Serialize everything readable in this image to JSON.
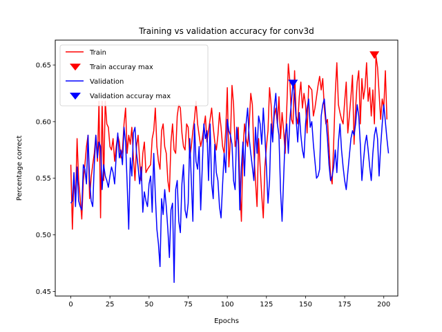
{
  "chart_data": {
    "type": "line",
    "title": "Training vs validation accuracy for conv3d",
    "xlabel": "Epochs",
    "ylabel": "Percentage correct",
    "xlim": [
      -9.95,
      208.95
    ],
    "ylim": [
      0.446,
      0.672
    ],
    "x_ticks": [
      0,
      25,
      50,
      75,
      100,
      125,
      150,
      175,
      200
    ],
    "y_ticks": [
      0.45,
      0.5,
      0.55,
      0.6,
      0.65
    ],
    "x_tick_labels": [
      "0",
      "25",
      "50",
      "75",
      "100",
      "125",
      "150",
      "175",
      "200"
    ],
    "y_tick_labels": [
      "0.45",
      "0.50",
      "0.55",
      "0.60",
      "0.65"
    ],
    "grid": false,
    "legend_position": "top-left",
    "series": [
      {
        "name": "Train",
        "color": "#ff0000",
        "values": [
          0.562,
          0.505,
          0.551,
          0.53,
          0.585,
          0.548,
          0.532,
          0.514,
          0.548,
          0.562,
          0.578,
          0.588,
          0.532,
          0.551,
          0.562,
          0.572,
          0.588,
          0.565,
          0.618,
          0.515,
          0.618,
          0.548,
          0.618,
          0.598,
          0.595,
          0.578,
          0.575,
          0.585,
          0.565,
          0.578,
          0.588,
          0.582,
          0.568,
          0.575,
          0.598,
          0.612,
          0.572,
          0.588,
          0.58,
          0.595,
          0.568,
          0.548,
          0.578,
          0.588,
          0.565,
          0.548,
          0.572,
          0.582,
          0.555,
          0.558,
          0.56,
          0.562,
          0.585,
          0.592,
          0.612,
          0.578,
          0.565,
          0.558,
          0.592,
          0.598,
          0.578,
          0.572,
          0.548,
          0.538,
          0.582,
          0.598,
          0.575,
          0.572,
          0.605,
          0.615,
          0.612,
          0.59,
          0.578,
          0.575,
          0.598,
          0.595,
          0.568,
          0.578,
          0.592,
          0.602,
          0.618,
          0.598,
          0.588,
          0.578,
          0.585,
          0.595,
          0.605,
          0.582,
          0.592,
          0.602,
          0.612,
          0.595,
          0.582,
          0.575,
          0.588,
          0.608,
          0.595,
          0.578,
          0.572,
          0.592,
          0.63,
          0.56,
          0.585,
          0.632,
          0.615,
          0.578,
          0.585,
          0.595,
          0.545,
          0.512,
          0.575,
          0.598,
          0.585,
          0.578,
          0.598,
          0.625,
          0.615,
          0.572,
          0.548,
          0.525,
          0.585,
          0.56,
          0.535,
          0.515,
          0.56,
          0.578,
          0.592,
          0.63,
          0.615,
          0.585,
          0.605,
          0.612,
          0.598,
          0.622,
          0.585,
          0.608,
          0.592,
          0.572,
          0.612,
          0.651,
          0.635,
          0.602,
          0.598,
          0.645,
          0.605,
          0.598,
          0.622,
          0.635,
          0.612,
          0.625,
          0.615,
          0.59,
          0.632,
          0.63,
          0.628,
          0.605,
          0.612,
          0.622,
          0.632,
          0.64,
          0.628,
          0.638,
          0.612,
          0.598,
          0.602,
          0.578,
          0.552,
          0.545,
          0.582,
          0.625,
          0.652,
          0.615,
          0.608,
          0.602,
          0.598,
          0.618,
          0.635,
          0.59,
          0.605,
          0.622,
          0.641,
          0.58,
          0.612,
          0.635,
          0.645,
          0.598,
          0.638,
          0.62,
          0.63,
          0.652,
          0.618,
          0.63,
          0.605,
          0.628,
          0.598,
          0.658,
          0.648,
          0.625,
          0.602,
          0.62,
          0.612,
          0.645,
          0.602
        ],
        "max_marker": {
          "x": 194,
          "y": 0.659,
          "label": "Train accuray max"
        }
      },
      {
        "name": "Validation",
        "color": "#0000ff",
        "values": [
          0.528,
          0.53,
          0.555,
          0.525,
          0.56,
          0.53,
          0.525,
          0.522,
          0.562,
          0.558,
          0.545,
          0.588,
          0.548,
          0.53,
          0.525,
          0.562,
          0.588,
          0.568,
          0.582,
          0.578,
          0.54,
          0.562,
          0.552,
          0.548,
          0.542,
          0.552,
          0.56,
          0.555,
          0.545,
          0.57,
          0.59,
          0.568,
          0.575,
          0.562,
          0.595,
          0.582,
          0.545,
          0.505,
          0.568,
          0.552,
          0.59,
          0.595,
          0.572,
          0.56,
          0.545,
          0.56,
          0.52,
          0.538,
          0.53,
          0.525,
          0.545,
          0.552,
          0.52,
          0.572,
          0.535,
          0.505,
          0.492,
          0.472,
          0.532,
          0.518,
          0.54,
          0.525,
          0.505,
          0.48,
          0.522,
          0.528,
          0.458,
          0.54,
          0.548,
          0.512,
          0.502,
          0.545,
          0.562,
          0.522,
          0.515,
          0.528,
          0.585,
          0.548,
          0.512,
          0.598,
          0.565,
          0.558,
          0.578,
          0.522,
          0.56,
          0.598,
          0.585,
          0.592,
          0.548,
          0.598,
          0.545,
          0.532,
          0.58,
          0.555,
          0.548,
          0.525,
          0.515,
          0.545,
          0.572,
          0.555,
          0.602,
          0.592,
          0.588,
          0.58,
          0.548,
          0.54,
          0.595,
          0.58,
          0.522,
          0.56,
          0.582,
          0.552,
          0.598,
          0.612,
          0.585,
          0.572,
          0.56,
          0.548,
          0.595,
          0.572,
          0.605,
          0.598,
          0.58,
          0.612,
          0.588,
          0.56,
          0.528,
          0.548,
          0.598,
          0.582,
          0.612,
          0.625,
          0.598,
          0.588,
          0.54,
          0.512,
          0.55,
          0.588,
          0.598,
          0.572,
          0.602,
          0.618,
          0.635,
          0.622,
          0.602,
          0.582,
          0.608,
          0.588,
          0.575,
          0.568,
          0.598,
          0.612,
          0.62,
          0.595,
          0.6,
          0.58,
          0.565,
          0.55,
          0.552,
          0.558,
          0.605,
          0.615,
          0.62,
          0.602,
          0.585,
          0.562,
          0.548,
          0.552,
          0.56,
          0.575,
          0.555,
          0.582,
          0.598,
          0.575,
          0.56,
          0.548,
          0.54,
          0.555,
          0.57,
          0.585,
          0.592,
          0.588,
          0.598,
          0.615,
          0.605,
          0.58,
          0.548,
          0.565,
          0.58,
          0.588,
          0.575,
          0.56,
          0.548,
          0.572,
          0.588,
          0.595,
          0.585,
          0.552,
          0.578,
          0.598,
          0.615,
          0.6,
          0.585,
          0.572
        ],
        "max_marker": {
          "x": 142,
          "y": 0.634,
          "label": "Validation accuray max"
        }
      }
    ]
  }
}
